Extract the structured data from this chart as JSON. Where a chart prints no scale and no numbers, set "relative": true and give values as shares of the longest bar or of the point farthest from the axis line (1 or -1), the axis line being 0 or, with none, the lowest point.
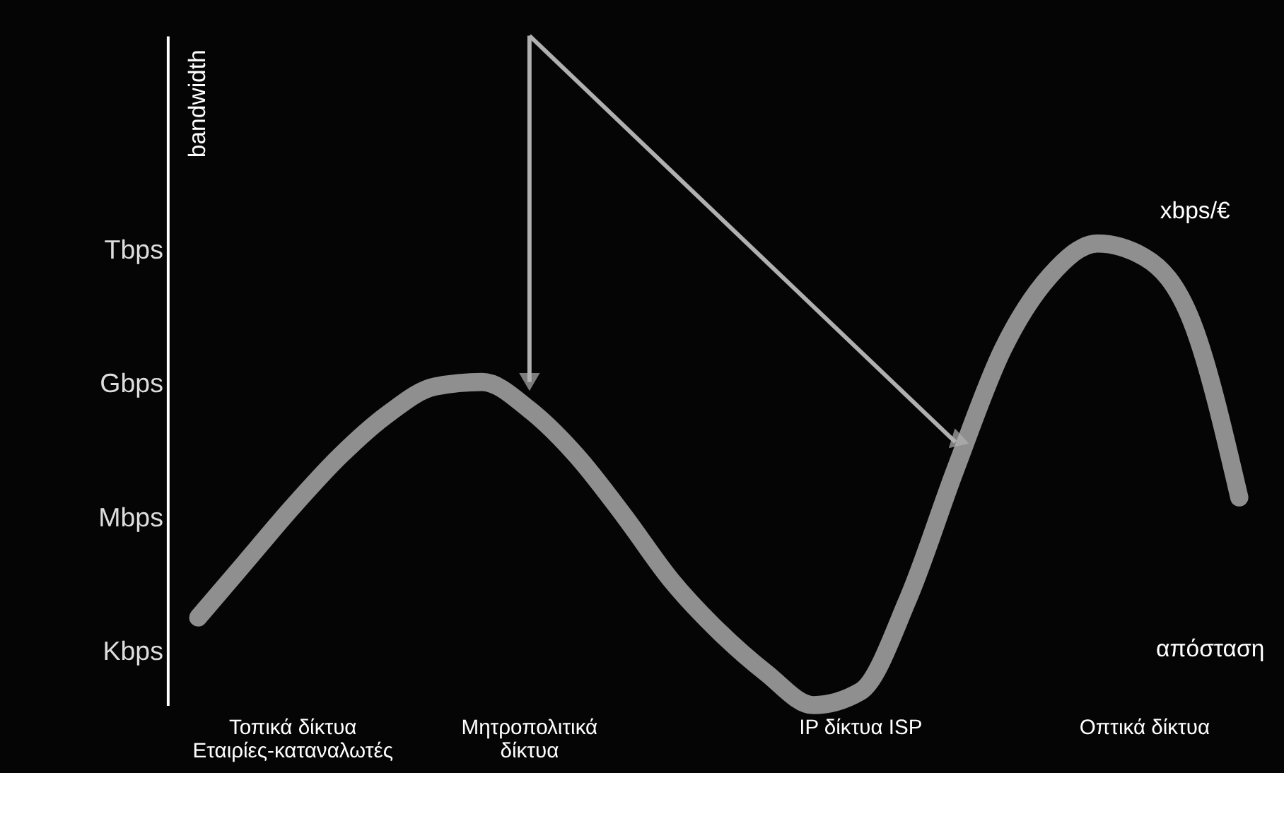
{
  "chart_data": {
    "type": "line",
    "ylabel": "bandwidth",
    "xlabel": "απόσταση",
    "relative": true,
    "categories": [
      null,
      null,
      "Τοπικά δίκτυα\nΕταιρίες-καταναλωτές",
      null,
      null,
      null,
      null,
      "Μητροπολιτικά\nδίκτυα",
      null,
      null,
      null,
      null,
      null,
      null,
      "IP δίκτυα ISP",
      null,
      null,
      null,
      null,
      null,
      "Οπτικά δίκτυα",
      null,
      null
    ],
    "series": [
      {
        "name": "xbps/€",
        "color": "#8f8f8f",
        "values": [
          0.19,
          0.31,
          0.43,
          0.54,
          0.63,
          0.69,
          0.7,
          0.64,
          0.54,
          0.41,
          0.27,
          0.16,
          0.07,
          0.0,
          0.03,
          0.23,
          0.51,
          0.77,
          0.93,
          1.0,
          0.97,
          0.83,
          0.45
        ]
      }
    ],
    "annotations": [
      "Kbps",
      "Mbps",
      "Gbps",
      "Tbps"
    ],
    "grid": false,
    "marker": "none",
    "line_style": "solid"
  }
}
